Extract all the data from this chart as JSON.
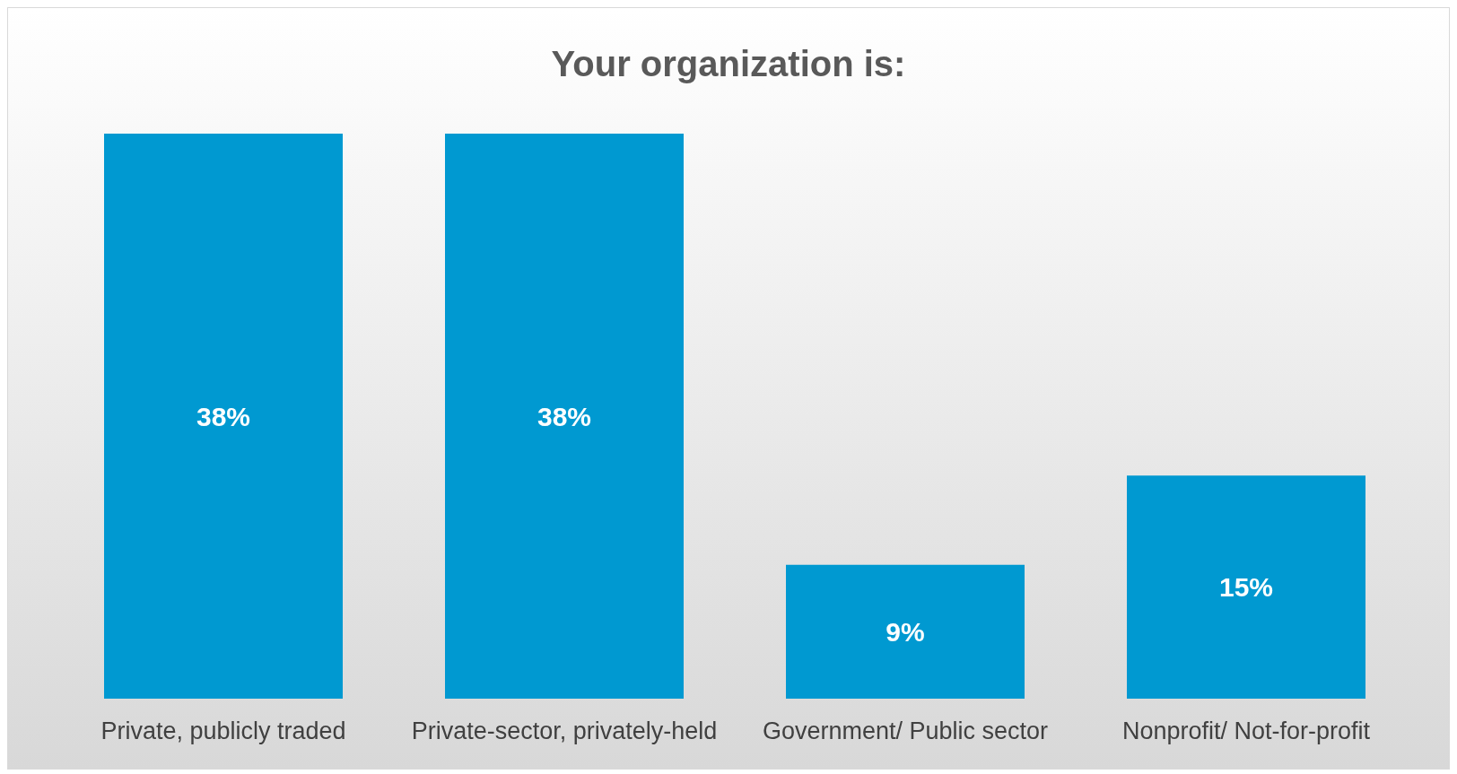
{
  "chart_data": {
    "type": "bar",
    "title": "Your organization is:",
    "categories": [
      "Private, publicly traded",
      "Private-sector, privately-held",
      "Government/ Public sector",
      "Nonprofit/ Not-for-profit"
    ],
    "values": [
      38,
      38,
      9,
      15
    ],
    "value_labels": [
      "38%",
      "38%",
      "9%",
      "15%"
    ],
    "color": "#0099d1"
  }
}
